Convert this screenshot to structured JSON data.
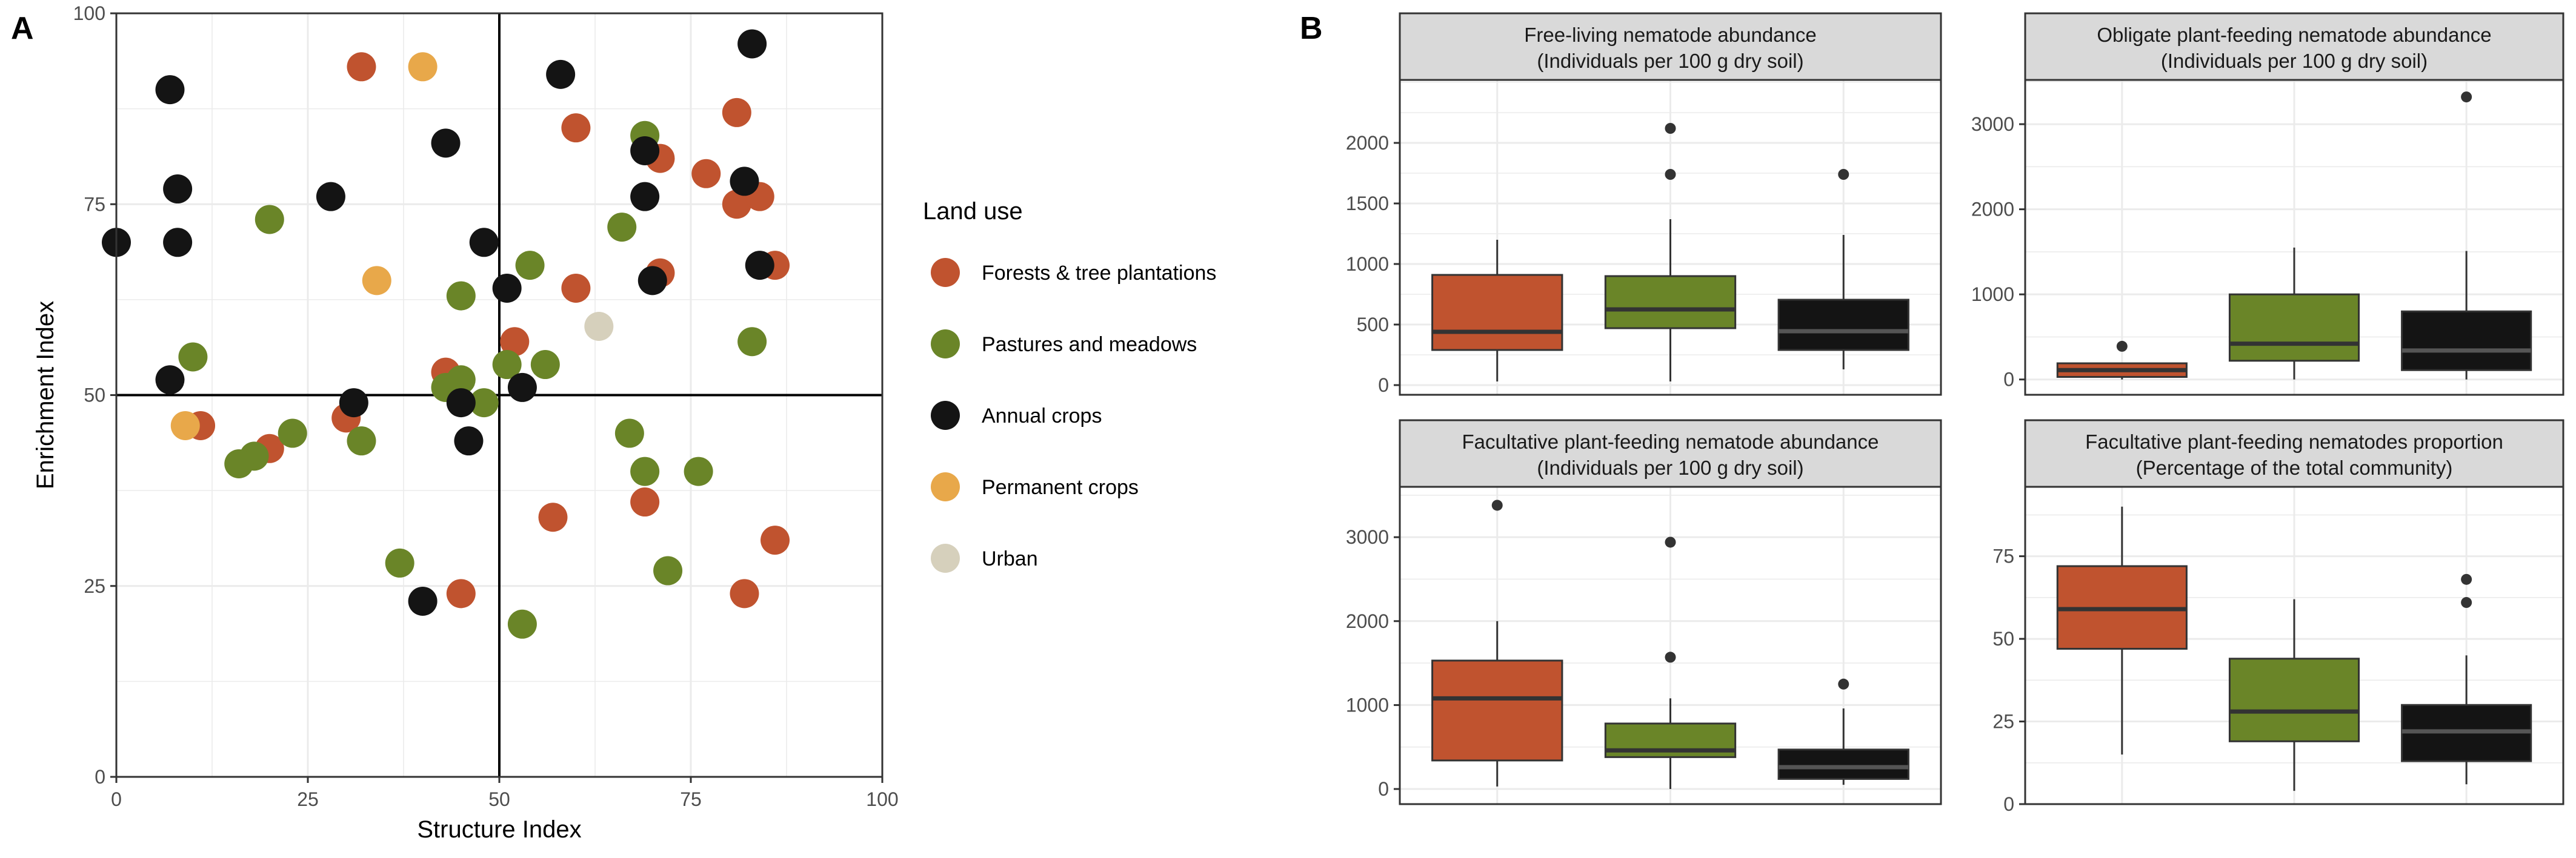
{
  "colors": {
    "Forests & tree plantations": "#c0532f",
    "Pastures and meadows": "#6a8528",
    "Annual crops": "#141414",
    "Permanent crops": "#e8a84a",
    "Urban": "#d6d0bc"
  },
  "chart_data": [
    {
      "type": "scatter",
      "panel_label": "A",
      "xlabel": "Structure Index",
      "ylabel": "Enrichment Index",
      "xlim": [
        0,
        100
      ],
      "ylim": [
        0,
        100
      ],
      "xticks": [
        0,
        25,
        50,
        75,
        100
      ],
      "yticks": [
        0,
        25,
        50,
        75,
        100
      ],
      "reference_lines": {
        "x": 50,
        "y": 50
      },
      "grid": true,
      "legend": {
        "title": "Land use",
        "position": "right",
        "entries": [
          "Forests & tree plantations",
          "Pastures and meadows",
          "Annual crops",
          "Permanent crops",
          "Urban"
        ]
      },
      "series": [
        {
          "name": "Forests & tree plantations",
          "points": [
            [
              32,
              93
            ],
            [
              60,
              85
            ],
            [
              71,
              81
            ],
            [
              77,
              79
            ],
            [
              81,
              87
            ],
            [
              81,
              75
            ],
            [
              84,
              76
            ],
            [
              86,
              67
            ],
            [
              71,
              66
            ],
            [
              60,
              64
            ],
            [
              52,
              57
            ],
            [
              43,
              53
            ],
            [
              30,
              47
            ],
            [
              20,
              43
            ],
            [
              11,
              46
            ],
            [
              57,
              34
            ],
            [
              69,
              36
            ],
            [
              86,
              31
            ],
            [
              82,
              24
            ],
            [
              45,
              24
            ]
          ]
        },
        {
          "name": "Pastures and meadows",
          "points": [
            [
              20,
              73
            ],
            [
              69,
              84
            ],
            [
              66,
              72
            ],
            [
              54,
              67
            ],
            [
              45,
              63
            ],
            [
              10,
              55
            ],
            [
              51,
              54
            ],
            [
              56,
              54
            ],
            [
              83,
              57
            ],
            [
              43,
              51
            ],
            [
              45,
              52
            ],
            [
              48,
              49
            ],
            [
              32,
              44
            ],
            [
              23,
              45
            ],
            [
              18,
              42
            ],
            [
              16,
              41
            ],
            [
              67,
              45
            ],
            [
              69,
              40
            ],
            [
              76,
              40
            ],
            [
              37,
              28
            ],
            [
              72,
              27
            ],
            [
              53,
              20
            ]
          ]
        },
        {
          "name": "Annual crops",
          "points": [
            [
              7,
              90
            ],
            [
              83,
              96
            ],
            [
              58,
              92
            ],
            [
              43,
              83
            ],
            [
              69,
              82
            ],
            [
              8,
              77
            ],
            [
              28,
              76
            ],
            [
              69,
              76
            ],
            [
              82,
              78
            ],
            [
              8,
              70
            ],
            [
              0,
              70
            ],
            [
              48,
              70
            ],
            [
              84,
              67
            ],
            [
              70,
              65
            ],
            [
              51,
              64
            ],
            [
              7,
              52
            ],
            [
              31,
              49
            ],
            [
              45,
              49
            ],
            [
              53,
              51
            ],
            [
              46,
              44
            ],
            [
              40,
              23
            ]
          ]
        },
        {
          "name": "Permanent crops",
          "points": [
            [
              40,
              93
            ],
            [
              34,
              65
            ],
            [
              9,
              46
            ]
          ]
        },
        {
          "name": "Urban",
          "points": [
            [
              63,
              59
            ]
          ]
        }
      ]
    },
    {
      "type": "boxplot",
      "panel_label": "B",
      "facets": [
        {
          "title_line1": "Free-living nematode abundance",
          "title_line2": "(Individuals per 100 g dry soil)",
          "ylim": [
            -80,
            2520
          ],
          "yticks": [
            0,
            500,
            1000,
            1500,
            2000
          ],
          "boxes": [
            {
              "group": "Forests & tree plantations",
              "min": 30,
              "q1": 290,
              "median": 440,
              "q3": 910,
              "max": 1200,
              "outliers": []
            },
            {
              "group": "Pastures and meadows",
              "min": 30,
              "q1": 470,
              "median": 625,
              "q3": 900,
              "max": 1370,
              "outliers": [
                1740,
                2120
              ]
            },
            {
              "group": "Annual crops",
              "min": 130,
              "q1": 290,
              "median": 445,
              "q3": 705,
              "max": 1240,
              "outliers": [
                1740
              ]
            }
          ]
        },
        {
          "title_line1": "Obligate plant-feeding nematode abundance",
          "title_line2": "(Individuals per 100 g dry soil)",
          "ylim": [
            -180,
            3520
          ],
          "yticks": [
            0,
            1000,
            2000,
            3000
          ],
          "boxes": [
            {
              "group": "Forests & tree plantations",
              "min": 0,
              "q1": 30,
              "median": 110,
              "q3": 190,
              "max": 190,
              "outliers": [
                390
              ]
            },
            {
              "group": "Pastures and meadows",
              "min": 0,
              "q1": 220,
              "median": 420,
              "q3": 1000,
              "max": 1550,
              "outliers": []
            },
            {
              "group": "Annual crops",
              "min": 0,
              "q1": 110,
              "median": 340,
              "q3": 800,
              "max": 1510,
              "outliers": [
                3320
              ]
            }
          ]
        },
        {
          "title_line1": "Facultative plant-feeding  nematode abundance",
          "title_line2": "(Individuals per 100 g dry soil)",
          "ylim": [
            -180,
            3600
          ],
          "yticks": [
            0,
            1000,
            2000,
            3000
          ],
          "boxes": [
            {
              "group": "Forests & tree plantations",
              "min": 30,
              "q1": 340,
              "median": 1080,
              "q3": 1530,
              "max": 2000,
              "outliers": [
                3380
              ]
            },
            {
              "group": "Pastures and meadows",
              "min": 0,
              "q1": 380,
              "median": 460,
              "q3": 780,
              "max": 1080,
              "outliers": [
                1570,
                2940
              ]
            },
            {
              "group": "Annual crops",
              "min": 50,
              "q1": 120,
              "median": 260,
              "q3": 470,
              "max": 960,
              "outliers": [
                1250
              ]
            }
          ]
        },
        {
          "title_line1": "Facultative plant-feeding  nematodes proportion",
          "title_line2": "(Percentage of the total community)",
          "ylim": [
            0,
            96
          ],
          "yticks": [
            0,
            25,
            50,
            75
          ],
          "boxes": [
            {
              "group": "Forests & tree plantations",
              "min": 15,
              "q1": 47,
              "median": 59,
              "q3": 72,
              "max": 90,
              "outliers": []
            },
            {
              "group": "Pastures and meadows",
              "min": 4,
              "q1": 19,
              "median": 28,
              "q3": 44,
              "max": 62,
              "outliers": []
            },
            {
              "group": "Annual crops",
              "min": 6,
              "q1": 13,
              "median": 22,
              "q3": 30,
              "max": 45,
              "outliers": [
                61,
                68
              ]
            }
          ]
        }
      ]
    }
  ]
}
